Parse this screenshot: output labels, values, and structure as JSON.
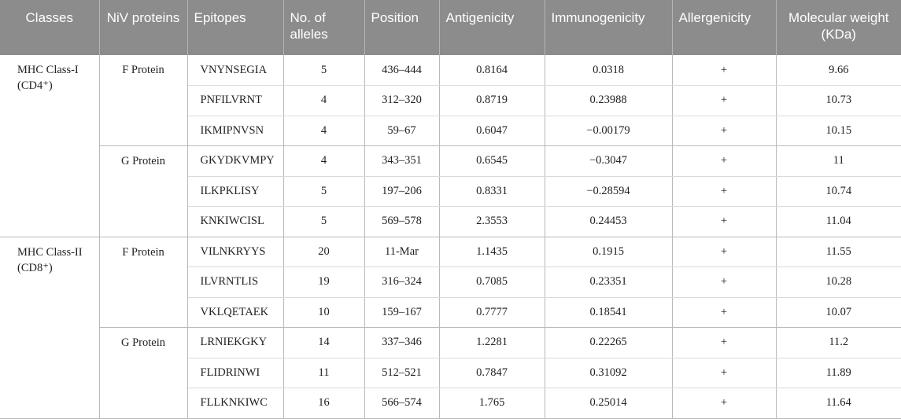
{
  "headers": [
    {
      "label": "Classes",
      "align": "center"
    },
    {
      "label": "NiV proteins",
      "align": "center"
    },
    {
      "label": "Epitopes",
      "align": "left"
    },
    {
      "label": "No. of alleles",
      "align": "left"
    },
    {
      "label": "Position",
      "align": "left"
    },
    {
      "label": "Antigenicity",
      "align": "left"
    },
    {
      "label": "Immunogenicity",
      "align": "left"
    },
    {
      "label": "Allergenicity",
      "align": "left"
    },
    {
      "label": "Molecular weight (KDa)",
      "align": "center"
    }
  ],
  "classes": [
    {
      "name": "MHC Class-I (CD4⁺)",
      "proteins": [
        {
          "name": "F Protein",
          "rows": [
            {
              "epitope": "VNYNSEGIA",
              "alleles": "5",
              "position": "436–444",
              "antigenicity": "0.8164",
              "immunogenicity": "0.0318",
              "allergenicity": "+",
              "mw": "9.66"
            },
            {
              "epitope": "PNFILVRNT",
              "alleles": "4",
              "position": "312–320",
              "antigenicity": "0.8719",
              "immunogenicity": "0.23988",
              "allergenicity": "+",
              "mw": "10.73"
            },
            {
              "epitope": "IKMIPNVSN",
              "alleles": "4",
              "position": "59–67",
              "antigenicity": "0.6047",
              "immunogenicity": "−0.00179",
              "allergenicity": "+",
              "mw": "10.15"
            }
          ]
        },
        {
          "name": "G Protein",
          "rows": [
            {
              "epitope": "GKYDKVMPY",
              "alleles": "4",
              "position": "343–351",
              "antigenicity": "0.6545",
              "immunogenicity": "−0.3047",
              "allergenicity": "+",
              "mw": "11"
            },
            {
              "epitope": "ILKPKLISY",
              "alleles": "5",
              "position": "197–206",
              "antigenicity": "0.8331",
              "immunogenicity": "−0.28594",
              "allergenicity": "+",
              "mw": "10.74"
            },
            {
              "epitope": "KNKIWCISL",
              "alleles": "5",
              "position": "569–578",
              "antigenicity": "2.3553",
              "immunogenicity": "0.24453",
              "allergenicity": "+",
              "mw": "11.04"
            }
          ]
        }
      ]
    },
    {
      "name": "MHC Class-II (CD8⁺)",
      "proteins": [
        {
          "name": "F Protein",
          "rows": [
            {
              "epitope": "VILNKRYYS",
              "alleles": "20",
              "position": "11-Mar",
              "antigenicity": "1.1435",
              "immunogenicity": "0.1915",
              "allergenicity": "+",
              "mw": "11.55"
            },
            {
              "epitope": "ILVRNTLIS",
              "alleles": "19",
              "position": "316–324",
              "antigenicity": "0.7085",
              "immunogenicity": "0.23351",
              "allergenicity": "+",
              "mw": "10.28"
            },
            {
              "epitope": "VKLQETAEK",
              "alleles": "10",
              "position": "159–167",
              "antigenicity": "0.7777",
              "immunogenicity": "0.18541",
              "allergenicity": "+",
              "mw": "10.07"
            }
          ]
        },
        {
          "name": "G Protein",
          "rows": [
            {
              "epitope": "LRNIEKGKY",
              "alleles": "14",
              "position": "337–346",
              "antigenicity": "1.2281",
              "immunogenicity": "0.22265",
              "allergenicity": "+",
              "mw": "11.2"
            },
            {
              "epitope": "FLIDRINWI",
              "alleles": "11",
              "position": "512–521",
              "antigenicity": "0.7847",
              "immunogenicity": "0.31092",
              "allergenicity": "+",
              "mw": "11.89"
            },
            {
              "epitope": "FLLKNKIWC",
              "alleles": "16",
              "position": "566–574",
              "antigenicity": "1.765",
              "immunogenicity": "0.25014",
              "allergenicity": "+",
              "mw": "11.64"
            }
          ]
        }
      ]
    }
  ]
}
